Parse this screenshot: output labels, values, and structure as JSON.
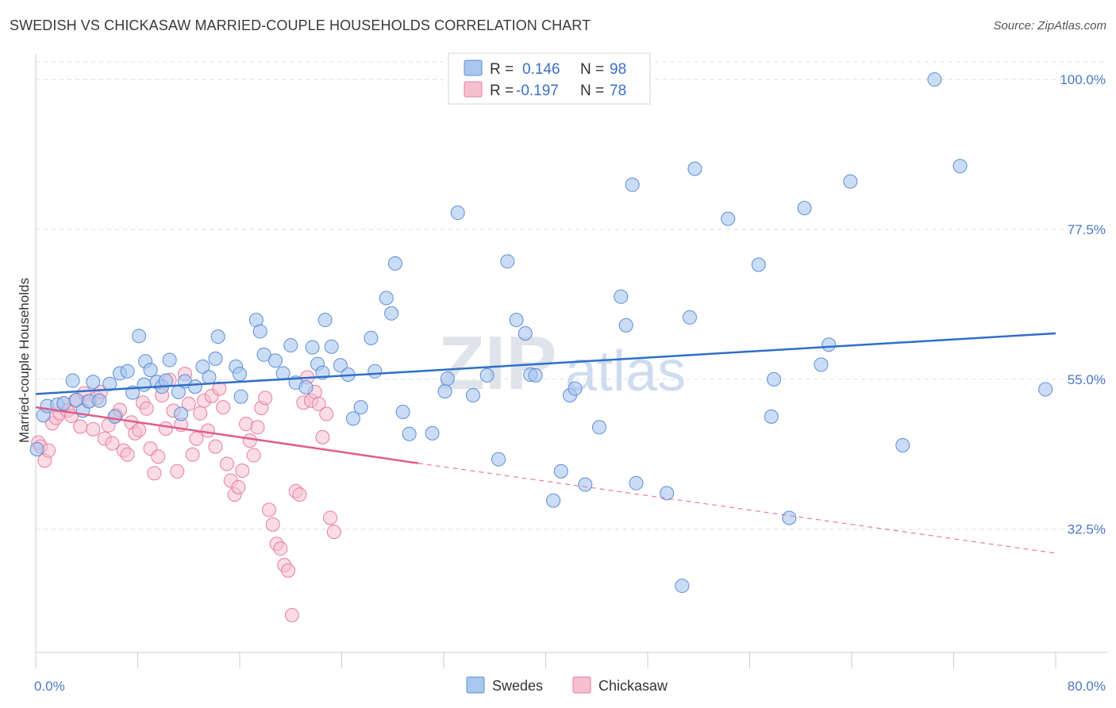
{
  "title": "SWEDISH VS CHICKASAW MARRIED-COUPLE HOUSEHOLDS CORRELATION CHART",
  "source": "Source: ZipAtlas.com",
  "watermark": {
    "zip": "ZIP",
    "atlas": "atlas"
  },
  "legend": {
    "swedes": {
      "r_label": "R =",
      "r_value": "0.146",
      "n_label": "N =",
      "n_value": "98"
    },
    "chickasaw": {
      "r_label": "R =",
      "r_value": "-0.197",
      "n_label": "N =",
      "n_value": "78"
    }
  },
  "colors": {
    "swedes_fill": "#a9c6ef",
    "swedes_stroke": "#5b8ed6",
    "swedes_line": "#2f6fc8",
    "chickasaw_fill": "#f6bfd0",
    "chickasaw_stroke": "#e77ea0",
    "chickasaw_line": "#e05c8a",
    "grid": "#dcdcdc",
    "axis_text": "#4a78c8"
  },
  "chart_data": {
    "type": "scatter",
    "title": "SWEDISH VS CHICKASAW MARRIED-COUPLE HOUSEHOLDS CORRELATION CHART",
    "xlabel": "",
    "ylabel": "Married-couple Households",
    "xlim": [
      0,
      80
    ],
    "ylim": [
      14,
      103
    ],
    "x_tick_labels": [
      "0.0%",
      "80.0%"
    ],
    "y_ticks": [
      32.5,
      55.0,
      77.5,
      100.0
    ],
    "y_tick_labels": [
      "32.5%",
      "55.0%",
      "77.5%",
      "100.0%"
    ],
    "grid": true,
    "legend_position": "top-center",
    "series": [
      {
        "name": "Swedes",
        "r": 0.146,
        "n": 98,
        "trend": {
          "x": [
            0,
            80
          ],
          "y": [
            52.8,
            61.9
          ]
        },
        "points": [
          [
            0.1,
            44.5
          ],
          [
            0.6,
            49.6
          ],
          [
            0.9,
            51
          ],
          [
            1.7,
            51.2
          ],
          [
            2.2,
            51.4
          ],
          [
            2.9,
            54.8
          ],
          [
            3.2,
            51.9
          ],
          [
            3.7,
            50.3
          ],
          [
            4.2,
            51.7
          ],
          [
            4.5,
            54.6
          ],
          [
            5.0,
            51.8
          ],
          [
            5.8,
            54.3
          ],
          [
            6.2,
            49.4
          ],
          [
            6.6,
            55.9
          ],
          [
            7.2,
            56.2
          ],
          [
            7.6,
            53
          ],
          [
            8.1,
            61.5
          ],
          [
            8.5,
            54.2
          ],
          [
            8.6,
            57.7
          ],
          [
            9.0,
            56.4
          ],
          [
            9.5,
            54.6
          ],
          [
            9.9,
            53.9
          ],
          [
            10.2,
            54.8
          ],
          [
            10.5,
            57.9
          ],
          [
            11.2,
            53.1
          ],
          [
            11.4,
            49.8
          ],
          [
            11.7,
            54.7
          ],
          [
            12.5,
            53.9
          ],
          [
            13.1,
            56.9
          ],
          [
            13.6,
            55.3
          ],
          [
            14.1,
            58.1
          ],
          [
            14.3,
            61.4
          ],
          [
            15.7,
            56.9
          ],
          [
            16.0,
            55.8
          ],
          [
            16.1,
            52.4
          ],
          [
            17.3,
            63.9
          ],
          [
            17.6,
            62.2
          ],
          [
            17.9,
            58.7
          ],
          [
            18.8,
            57.8
          ],
          [
            19.4,
            55.9
          ],
          [
            20.0,
            60.1
          ],
          [
            20.4,
            54.5
          ],
          [
            21.2,
            53.8
          ],
          [
            21.7,
            59.8
          ],
          [
            22.1,
            57.3
          ],
          [
            22.5,
            56
          ],
          [
            22.7,
            63.9
          ],
          [
            23.2,
            59.9
          ],
          [
            23.9,
            57.1
          ],
          [
            24.5,
            55.7
          ],
          [
            24.9,
            49.1
          ],
          [
            25.5,
            50.8
          ],
          [
            26.3,
            61.2
          ],
          [
            26.6,
            56.2
          ],
          [
            27.5,
            67.2
          ],
          [
            27.9,
            64.9
          ],
          [
            28.2,
            72.4
          ],
          [
            28.8,
            50.1
          ],
          [
            29.3,
            46.8
          ],
          [
            31.1,
            46.9
          ],
          [
            32.1,
            53.2
          ],
          [
            32.3,
            55.1
          ],
          [
            33.1,
            80
          ],
          [
            34.3,
            52.6
          ],
          [
            35.4,
            55.6
          ],
          [
            36.3,
            43
          ],
          [
            37.0,
            72.7
          ],
          [
            37.7,
            63.9
          ],
          [
            38.4,
            61.9
          ],
          [
            38.8,
            55.7
          ],
          [
            39.2,
            55.6
          ],
          [
            40.6,
            36.8
          ],
          [
            41.2,
            41.2
          ],
          [
            41.9,
            52.6
          ],
          [
            42.3,
            53.6
          ],
          [
            43.1,
            39.2
          ],
          [
            44.2,
            47.8
          ],
          [
            45.9,
            67.4
          ],
          [
            46.3,
            63.1
          ],
          [
            46.8,
            84.2
          ],
          [
            47.1,
            39.4
          ],
          [
            49.5,
            37.9
          ],
          [
            50.7,
            24
          ],
          [
            51.3,
            64.3
          ],
          [
            51.7,
            86.6
          ],
          [
            54.3,
            79.1
          ],
          [
            56.7,
            72.2
          ],
          [
            57.7,
            49.4
          ],
          [
            57.9,
            55
          ],
          [
            59.1,
            34.2
          ],
          [
            60.3,
            80.7
          ],
          [
            61.6,
            57.2
          ],
          [
            62.2,
            60.2
          ],
          [
            63.9,
            84.7
          ],
          [
            68.0,
            45.1
          ],
          [
            70.5,
            100
          ],
          [
            72.5,
            87
          ],
          [
            79.2,
            53.5
          ]
        ]
      },
      {
        "name": "Chickasaw",
        "r": -0.197,
        "n": 78,
        "trend": {
          "x": [
            0,
            30
          ],
          "y": [
            50.8,
            42.4
          ]
        },
        "trend_dashed": {
          "x": [
            30,
            80
          ],
          "y": [
            42.4,
            28.9
          ]
        },
        "points": [
          [
            0.2,
            45.5
          ],
          [
            0.4,
            44.9
          ],
          [
            0.7,
            42.8
          ],
          [
            1.0,
            44.3
          ],
          [
            1.3,
            48.4
          ],
          [
            1.6,
            49.2
          ],
          [
            1.9,
            49.9
          ],
          [
            2.2,
            51.4
          ],
          [
            2.5,
            50.3
          ],
          [
            2.8,
            49.5
          ],
          [
            3.1,
            51.8
          ],
          [
            3.5,
            47.9
          ],
          [
            3.8,
            52.9
          ],
          [
            4.1,
            51.7
          ],
          [
            4.5,
            47.5
          ],
          [
            4.8,
            52.2
          ],
          [
            5.1,
            53.1
          ],
          [
            5.4,
            46.1
          ],
          [
            5.7,
            48.1
          ],
          [
            6.0,
            45.4
          ],
          [
            6.3,
            49.6
          ],
          [
            6.6,
            50.4
          ],
          [
            6.9,
            44.3
          ],
          [
            7.2,
            43.7
          ],
          [
            7.5,
            48.5
          ],
          [
            7.8,
            46.9
          ],
          [
            8.1,
            47.4
          ],
          [
            8.4,
            51.5
          ],
          [
            8.7,
            50.6
          ],
          [
            9.0,
            44.6
          ],
          [
            9.3,
            40.9
          ],
          [
            9.6,
            43.4
          ],
          [
            9.9,
            52.6
          ],
          [
            10.2,
            47.6
          ],
          [
            10.5,
            54.9
          ],
          [
            10.8,
            50.3
          ],
          [
            11.1,
            41.2
          ],
          [
            11.4,
            48.2
          ],
          [
            11.7,
            55.8
          ],
          [
            12.0,
            51.3
          ],
          [
            12.3,
            43.7
          ],
          [
            12.6,
            46.1
          ],
          [
            12.9,
            49.9
          ],
          [
            13.2,
            51.8
          ],
          [
            13.5,
            47.3
          ],
          [
            13.8,
            52.5
          ],
          [
            14.1,
            44.9
          ],
          [
            14.4,
            53.6
          ],
          [
            14.7,
            50.8
          ],
          [
            15.0,
            42.3
          ],
          [
            15.3,
            39.8
          ],
          [
            15.6,
            37.7
          ],
          [
            15.9,
            38.8
          ],
          [
            16.2,
            41.3
          ],
          [
            16.5,
            48.3
          ],
          [
            16.8,
            45.8
          ],
          [
            17.1,
            43.6
          ],
          [
            17.4,
            47.8
          ],
          [
            17.7,
            50.7
          ],
          [
            18.0,
            52.2
          ],
          [
            18.3,
            35.4
          ],
          [
            18.6,
            33.2
          ],
          [
            18.9,
            30.3
          ],
          [
            19.2,
            29.6
          ],
          [
            19.5,
            27.1
          ],
          [
            19.8,
            26.3
          ],
          [
            20.1,
            19.6
          ],
          [
            20.4,
            38.2
          ],
          [
            20.7,
            37.7
          ],
          [
            21.0,
            51.5
          ],
          [
            21.3,
            55.3
          ],
          [
            21.6,
            51.8
          ],
          [
            21.9,
            53.1
          ],
          [
            22.2,
            51.3
          ],
          [
            22.5,
            46.3
          ],
          [
            22.8,
            49.8
          ],
          [
            23.1,
            34.2
          ],
          [
            23.4,
            32.1
          ]
        ]
      }
    ]
  }
}
